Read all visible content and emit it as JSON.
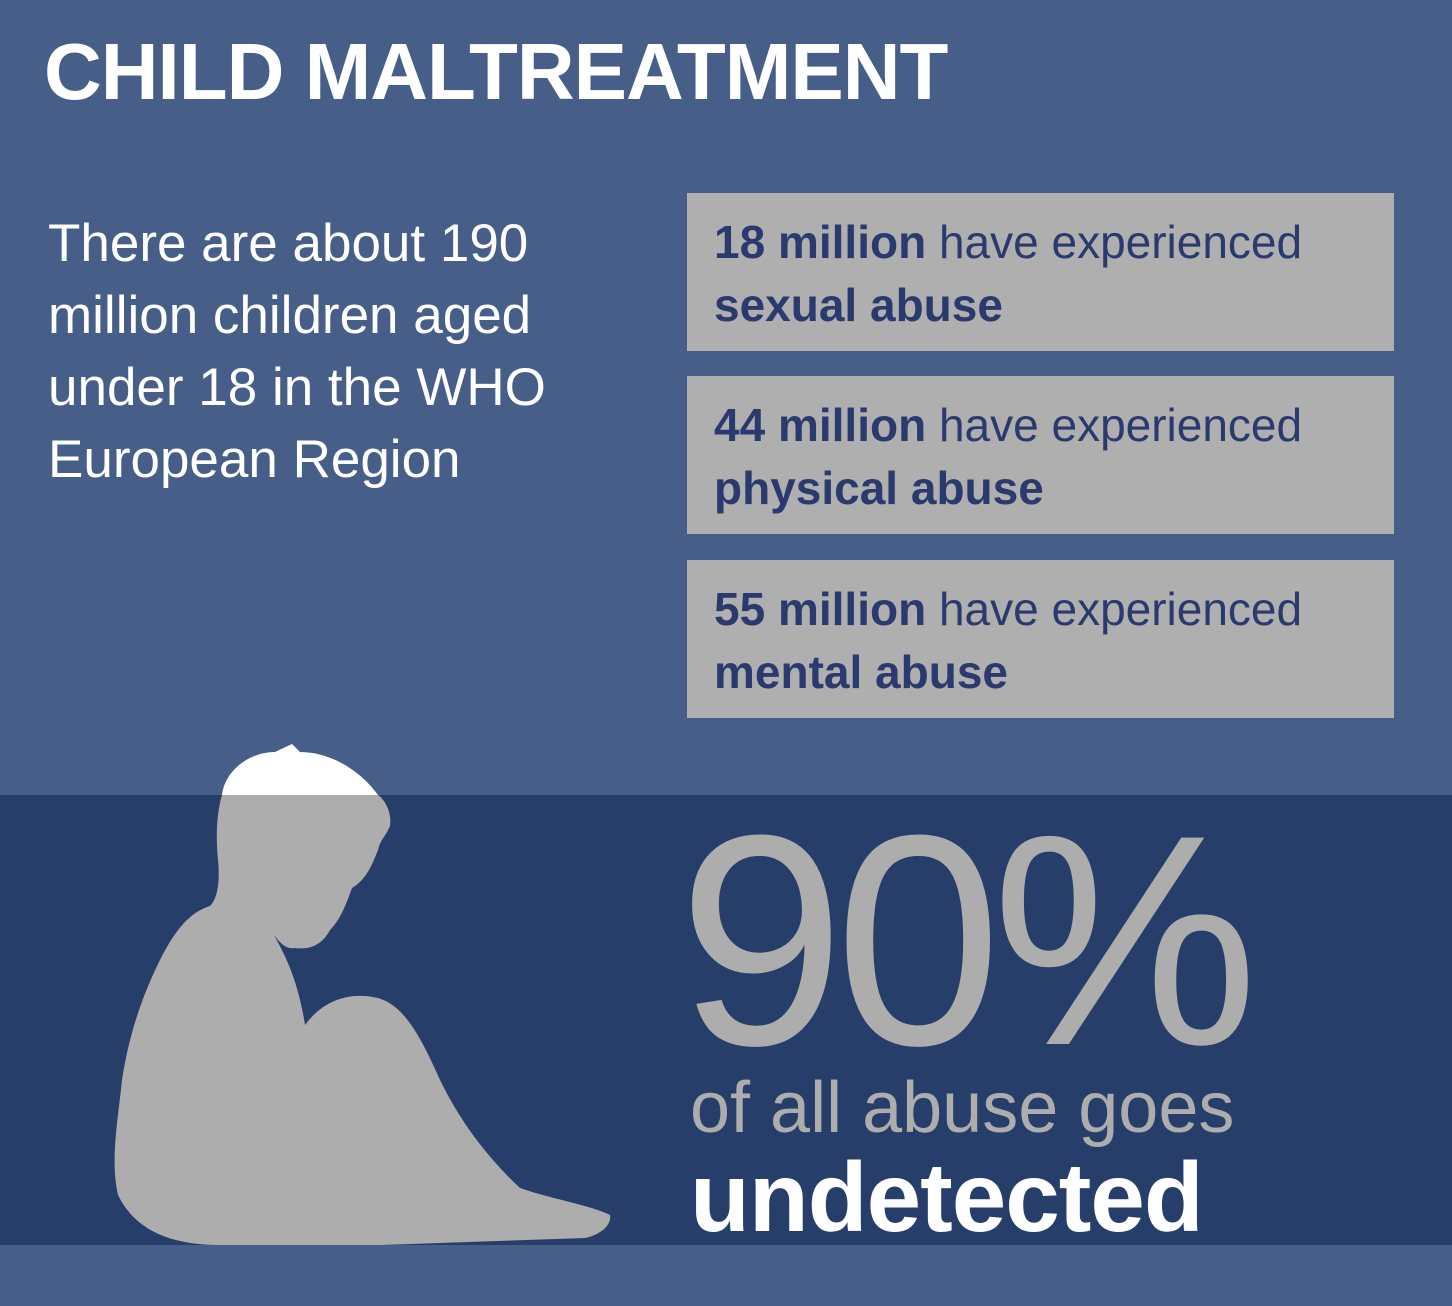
{
  "title": "CHILD MALTREATMENT",
  "intro_lines": [
    "There are about 190",
    "million children aged",
    "under 18 in the WHO",
    "European Region"
  ],
  "stats": [
    {
      "number": "18 million",
      "text": "have experienced",
      "kind": "sexual abuse"
    },
    {
      "number": "44 million",
      "text": "have experienced",
      "kind": "physical abuse"
    },
    {
      "number": "55 million",
      "text": "have experienced",
      "kind": "mental abuse"
    }
  ],
  "highlight": {
    "percent": "90%",
    "line": "of all abuse goes",
    "emphasis": "undetected"
  },
  "colors": {
    "background": "#475f88",
    "band": "#273e6b",
    "box": "#afafaf",
    "box_text": "#2b3a6e",
    "silhouette": "#adadad",
    "hair": "#ffffff"
  },
  "icons": [
    "sitting-child-silhouette-icon"
  ]
}
